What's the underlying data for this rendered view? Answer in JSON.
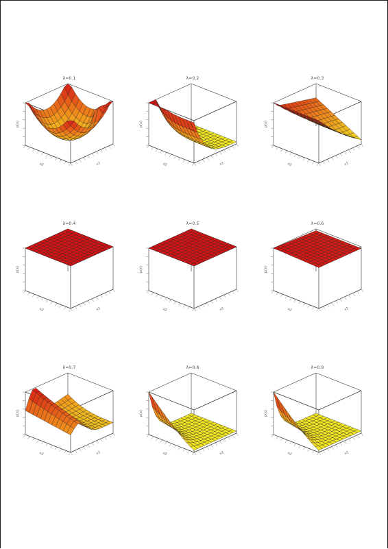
{
  "chart_data": [
    {
      "type": "surface",
      "title": "λ=0.1",
      "surface": "saddle",
      "zlabel": "p(x)",
      "xlabel": "x1",
      "ylabel": "x2",
      "grid_n": 12
    },
    {
      "type": "surface",
      "title": "λ=0.2",
      "surface": "corner_bowl",
      "zlabel": "p(x)",
      "xlabel": "x1",
      "ylabel": "x2",
      "grid_n": 12
    },
    {
      "type": "surface",
      "title": "λ=0.3",
      "surface": "tilted_plane",
      "zlabel": "p(x)",
      "xlabel": "x1",
      "ylabel": "x2",
      "grid_n": 12
    },
    {
      "type": "surface",
      "title": "λ=0.4",
      "surface": "flat",
      "zlabel": "p(x)",
      "xlabel": "x1",
      "ylabel": "x2",
      "grid_n": 12
    },
    {
      "type": "surface",
      "title": "λ=0.5",
      "surface": "flat",
      "zlabel": "p(x)",
      "xlabel": "x1",
      "ylabel": "x2",
      "grid_n": 12
    },
    {
      "type": "surface",
      "title": "λ=0.6",
      "surface": "flat_slight",
      "zlabel": "p(x)",
      "xlabel": "x1",
      "ylabel": "x2",
      "grid_n": 12
    },
    {
      "type": "surface",
      "title": "λ=0.7",
      "surface": "ridge",
      "zlabel": "p(x)",
      "xlabel": "x1",
      "ylabel": "x2",
      "grid_n": 12
    },
    {
      "type": "surface",
      "title": "λ=0.8",
      "surface": "corner_drop",
      "zlabel": "p(x)",
      "xlabel": "x1",
      "ylabel": "x2",
      "grid_n": 12
    },
    {
      "type": "surface",
      "title": "λ=0.9",
      "surface": "corner_drop",
      "zlabel": "p(x)",
      "xlabel": "x1",
      "ylabel": "x2",
      "grid_n": 12
    }
  ],
  "colors": {
    "high": "#d41414",
    "mid": "#f08a1c",
    "low": "#f2f224",
    "edge": "#222222",
    "box": "#333333"
  }
}
